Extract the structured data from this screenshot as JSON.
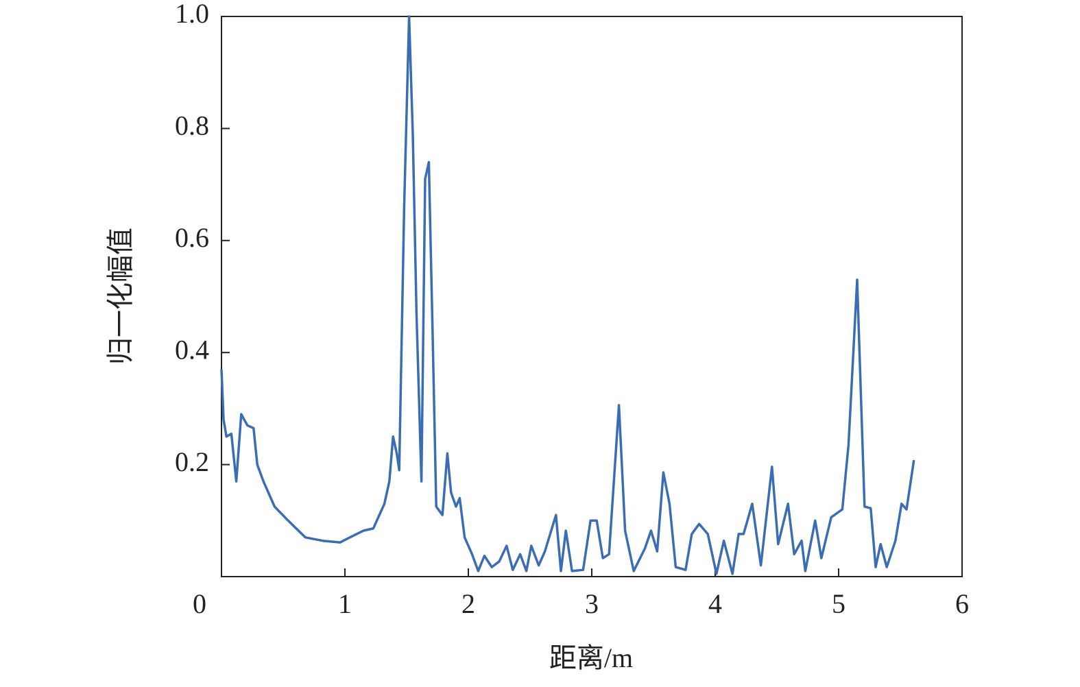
{
  "chart_data": {
    "type": "line",
    "x_label": "距离/m",
    "y_label": "归一化幅值",
    "xlim": [
      0,
      6
    ],
    "xticks": [
      0,
      1,
      2,
      3,
      4,
      5,
      6
    ],
    "ylim": [
      0,
      1
    ],
    "yticks": [
      0.2,
      0.4,
      0.6,
      0.8,
      {
        "value": 1,
        "label": "1.0"
      }
    ],
    "series": [
      {
        "color": "#3a6db3",
        "x": [
          0,
          0.017,
          0.04,
          0.08,
          0.12,
          0.16,
          0.21,
          0.26,
          0.29,
          0.34,
          0.43,
          0.54,
          0.68,
          0.82,
          0.96,
          1.04,
          1.15,
          1.23,
          1.32,
          1.36,
          1.39,
          1.42,
          1.44,
          1.48,
          1.52,
          1.55,
          1.58,
          1.62,
          1.65,
          1.68,
          1.71,
          1.74,
          1.79,
          1.83,
          1.86,
          1.9,
          1.93,
          1.97,
          2.03,
          2.08,
          2.13,
          2.19,
          2.25,
          2.31,
          2.36,
          2.42,
          2.47,
          2.51,
          2.57,
          2.62,
          2.71,
          2.75,
          2.79,
          2.84,
          2.93,
          2.99,
          3.04,
          3.09,
          3.14,
          3.22,
          3.27,
          3.34,
          3.43,
          3.48,
          3.53,
          3.58,
          3.63,
          3.68,
          3.76,
          3.81,
          3.87,
          3.94,
          4.01,
          4.07,
          4.14,
          4.19,
          4.23,
          4.3,
          4.37,
          4.46,
          4.51,
          4.59,
          4.64,
          4.7,
          4.73,
          4.81,
          4.86,
          4.94,
          5.03,
          5.08,
          5.15,
          5.21,
          5.26,
          5.3,
          5.34,
          5.39,
          5.46,
          5.51,
          5.55,
          5.61
        ],
        "values": [
          0.37,
          0.28,
          0.25,
          0.255,
          0.17,
          0.29,
          0.27,
          0.265,
          0.2,
          0.17,
          0.125,
          0.1,
          0.07,
          0.064,
          0.061,
          0.07,
          0.082,
          0.086,
          0.13,
          0.17,
          0.25,
          0.22,
          0.19,
          0.66,
          1.0,
          0.79,
          0.47,
          0.17,
          0.71,
          0.74,
          0.44,
          0.125,
          0.11,
          0.22,
          0.15,
          0.125,
          0.14,
          0.07,
          0.04,
          0.01,
          0.037,
          0.017,
          0.027,
          0.055,
          0.012,
          0.04,
          0.01,
          0.055,
          0.02,
          0.045,
          0.11,
          0.01,
          0.082,
          0.01,
          0.012,
          0.1,
          0.1,
          0.033,
          0.04,
          0.306,
          0.082,
          0.01,
          0.05,
          0.082,
          0.045,
          0.186,
          0.13,
          0.017,
          0.012,
          0.076,
          0.094,
          0.076,
          0.005,
          0.064,
          0.005,
          0.076,
          0.076,
          0.13,
          0.02,
          0.196,
          0.058,
          0.13,
          0.04,
          0.064,
          0.01,
          0.1,
          0.033,
          0.106,
          0.12,
          0.235,
          0.53,
          0.125,
          0.122,
          0.017,
          0.058,
          0.017,
          0.064,
          0.13,
          0.12,
          0.208
        ]
      }
    ]
  }
}
